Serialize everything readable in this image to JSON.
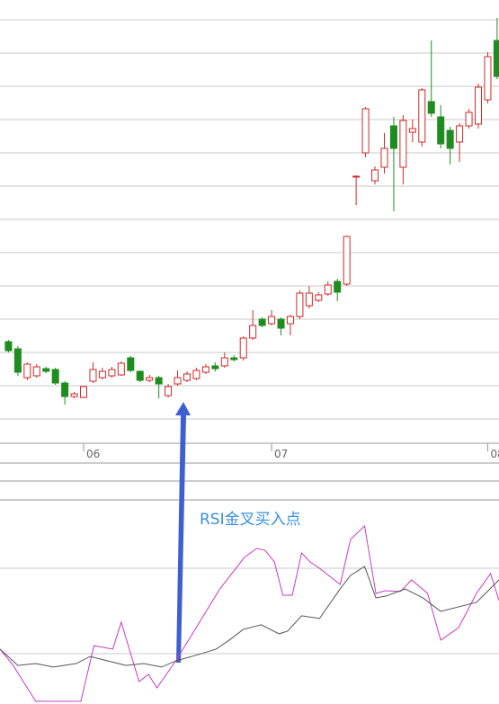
{
  "chart_data": [
    {
      "type": "candlestick",
      "xlim": [
        -0.9,
        52.2
      ],
      "ylim": [
        0,
        493
      ],
      "xticks": [
        {
          "value": 8,
          "label": "06"
        },
        {
          "value": 28,
          "label": "07"
        },
        {
          "value": 51,
          "label": "08"
        }
      ],
      "up_color": "#cc2a2a",
      "down_color": "#1e8c1e",
      "open": [
        113,
        105,
        73,
        75,
        83,
        82,
        67,
        52,
        51,
        69,
        73,
        75,
        76,
        95,
        80,
        70,
        73,
        53,
        66,
        70,
        72,
        79,
        86,
        86,
        95,
        95,
        117,
        138,
        133,
        138,
        133,
        141,
        153,
        159,
        166,
        180,
        177,
        296,
        323,
        292,
        307,
        353,
        307,
        346,
        335,
        380,
        363,
        348,
        335,
        353,
        355,
        382,
        448
      ],
      "high": [
        115,
        108,
        90,
        88,
        85,
        84,
        69,
        57,
        64,
        90,
        84,
        85,
        91,
        97,
        81,
        76,
        75,
        66,
        81,
        80,
        84,
        88,
        90,
        101,
        98,
        119,
        148,
        140,
        148,
        140,
        143,
        170,
        175,
        168,
        180,
        183,
        231,
        298,
        374,
        308,
        345,
        363,
        365,
        360,
        395,
        448,
        376,
        352,
        356,
        372,
        400,
        435,
        473
      ],
      "low": [
        101,
        75,
        70,
        73,
        78,
        65,
        43,
        50,
        50,
        67,
        71,
        73,
        75,
        79,
        68,
        68,
        50,
        51,
        64,
        68,
        70,
        77,
        80,
        84,
        91,
        92,
        115,
        129,
        131,
        120,
        120,
        138,
        150,
        157,
        164,
        158,
        175,
        265,
        318,
        288,
        300,
        258,
        288,
        335,
        330,
        363,
        328,
        310,
        313,
        350,
        350,
        378,
        405
      ],
      "close": [
        103,
        79,
        88,
        85,
        80,
        67,
        52,
        55,
        63,
        82,
        80,
        82,
        89,
        81,
        70,
        73,
        66,
        63,
        73,
        77,
        81,
        85,
        83,
        95,
        93,
        117,
        131,
        131,
        141,
        128,
        141,
        167,
        167,
        165,
        176,
        168,
        230,
        297,
        372,
        304,
        328,
        328,
        359,
        350,
        393,
        367,
        333,
        328,
        353,
        368,
        396,
        430,
        408
      ]
    },
    {
      "type": "line",
      "annotation": "RSI金叉买入点",
      "xlim": [
        -0.9,
        52.2
      ],
      "ylim": [
        0,
        100
      ],
      "series": [
        {
          "color": "#c43cc4",
          "x": [
            -0.9,
            0.5,
            2.9,
            7.7,
            9.1,
            11.1,
            12,
            13.9,
            14.9,
            15.8,
            17.8,
            22.5,
            25.1,
            26.4,
            27.3,
            28.3,
            29.2,
            30.2,
            31.2,
            32.1,
            33.1,
            35.3,
            36.4,
            37.9,
            39.1,
            40.1,
            41.7,
            42.9,
            44.6,
            46,
            47.9,
            49.8,
            51.3,
            52.2
          ],
          "values": [
            26.9,
            18.9,
            1.3,
            1.3,
            28.6,
            26.9,
            40.1,
            11,
            14.5,
            7.9,
            21.1,
            56.4,
            71.8,
            76.2,
            75.3,
            69.6,
            53.3,
            53.3,
            74,
            69.6,
            66.5,
            58.6,
            80.6,
            87.2,
            54.2,
            55.5,
            55.1,
            60.8,
            54.2,
            31.3,
            37.4,
            54.2,
            63.9,
            50.7
          ]
        },
        {
          "color": "#555555",
          "x": [
            -0.9,
            1,
            2.9,
            4.8,
            7.2,
            8.7,
            10.6,
            12.5,
            14.4,
            16.3,
            17.8,
            20.2,
            22.1,
            23.5,
            25,
            26.9,
            28.8,
            29.7,
            31.2,
            33.1,
            35.3,
            36.4,
            37.9,
            39.1,
            40.2,
            42.2,
            44.1,
            46,
            49.8,
            52.2
          ],
          "values": [
            26.9,
            18.9,
            19.8,
            18.1,
            19.8,
            23.3,
            21.1,
            18.9,
            19.8,
            18.1,
            21.1,
            24.2,
            26.9,
            31.3,
            36.6,
            38.8,
            34.4,
            35.7,
            43.2,
            41.9,
            56.4,
            63,
            67.4,
            52,
            52.9,
            56.4,
            52,
            45.4,
            49.8,
            60.8
          ]
        }
      ]
    }
  ]
}
